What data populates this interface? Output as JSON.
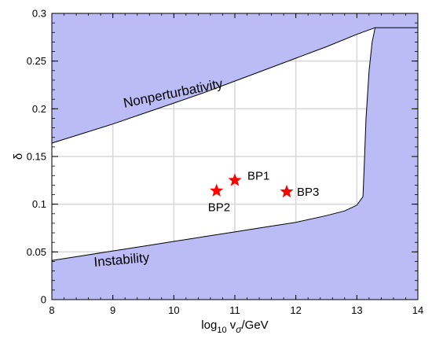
{
  "chart_data": {
    "type": "area",
    "xlim": [
      8,
      14
    ],
    "ylim": [
      0,
      0.3
    ],
    "x_ticks": [
      "8",
      "9",
      "10",
      "11",
      "12",
      "13",
      "14"
    ],
    "y_ticks": [
      "0",
      "0.05",
      "0.1",
      "0.15",
      "0.2",
      "0.25",
      "0.3"
    ],
    "xlabel": {
      "main": "log",
      "sub": "10",
      "rest": " v",
      "sigma": "σ",
      "unit": "/GeV"
    },
    "ylabel": "δ",
    "grid": true,
    "colors": {
      "excluded": "#bbbbf5",
      "grid": "#d9d9d9",
      "star": "#ff0000"
    },
    "upper_boundary": {
      "label": "Nonperturbativity",
      "x": [
        8.0,
        8.5,
        9.0,
        9.5,
        10.0,
        10.5,
        11.0,
        11.5,
        12.0,
        12.5,
        13.0,
        13.3,
        14.0
      ],
      "y": [
        0.164,
        0.174,
        0.184,
        0.195,
        0.206,
        0.217,
        0.229,
        0.241,
        0.253,
        0.265,
        0.278,
        0.285,
        0.285
      ]
    },
    "lower_boundary": {
      "label": "Instability",
      "x": [
        8.0,
        8.5,
        9.0,
        9.5,
        10.0,
        10.5,
        11.0,
        11.5,
        12.0,
        12.5,
        12.8,
        13.0,
        13.1
      ],
      "y": [
        0.041,
        0.046,
        0.051,
        0.056,
        0.061,
        0.066,
        0.071,
        0.076,
        0.081,
        0.088,
        0.093,
        0.099,
        0.108
      ]
    },
    "right_boundary": {
      "x": [
        13.1,
        13.12,
        13.15,
        13.2,
        13.25,
        13.3
      ],
      "y": [
        0.108,
        0.14,
        0.19,
        0.24,
        0.27,
        0.285
      ]
    },
    "benchmark_points": [
      {
        "name": "BP1",
        "x": 11.0,
        "y": 0.125
      },
      {
        "name": "BP2",
        "x": 10.7,
        "y": 0.114
      },
      {
        "name": "BP3",
        "x": 11.85,
        "y": 0.113
      }
    ]
  }
}
